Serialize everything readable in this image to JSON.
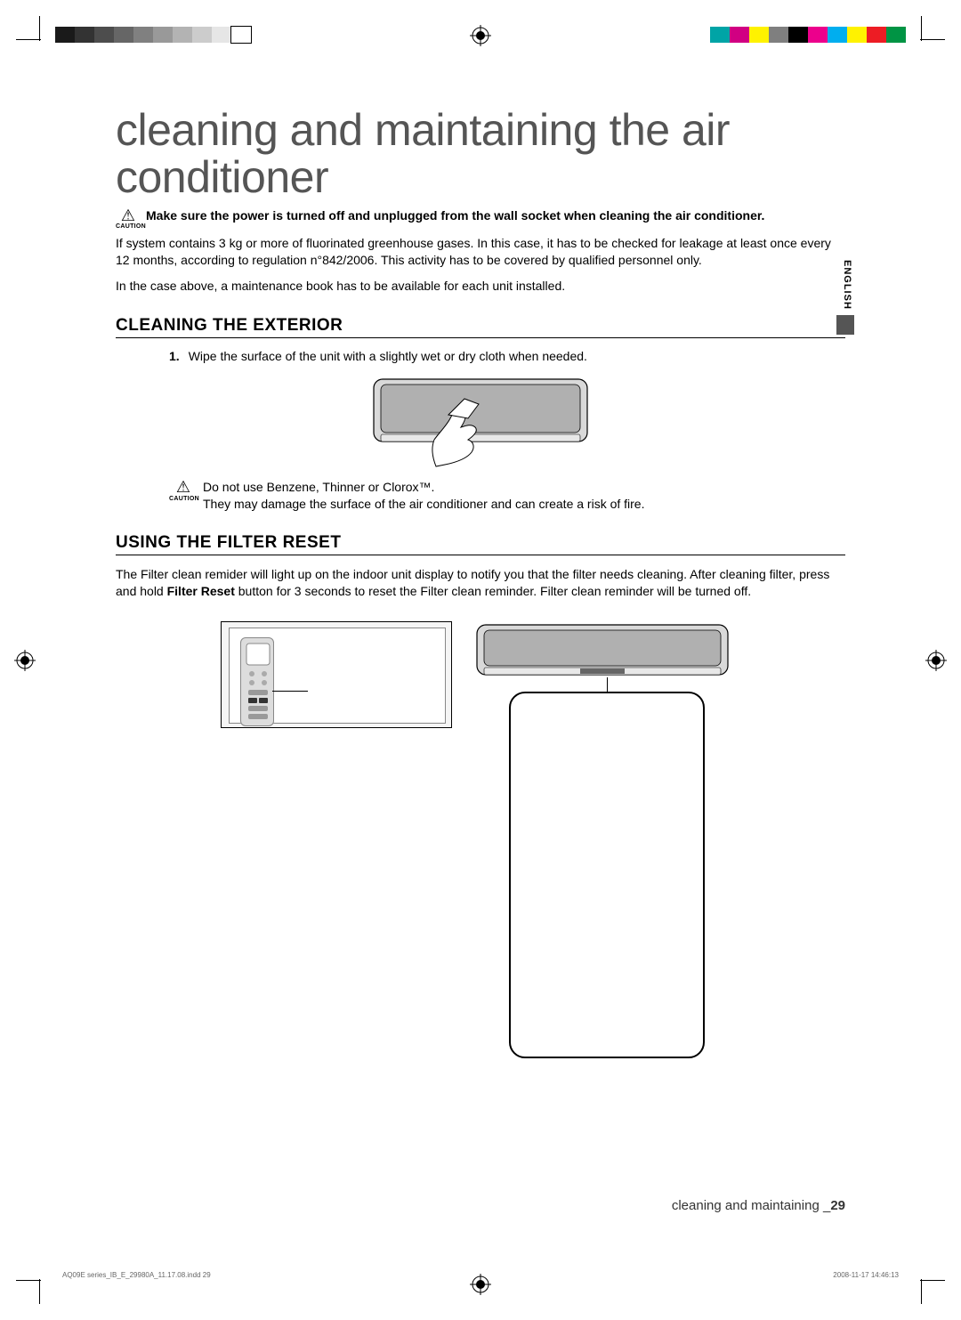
{
  "registration_bar_left": [
    "#1a1a1a",
    "#333333",
    "#4d4d4d",
    "#666666",
    "#808080",
    "#999999",
    "#b3b3b3",
    "#cccccc",
    "#e6e6e6",
    "#ffffff"
  ],
  "registration_bar_right": [
    "#00a4a6",
    "#d10082",
    "#fff200",
    "#7f7f7f",
    "#000000",
    "#ec008c",
    "#00aeef",
    "#fff200",
    "#ed1c24",
    "#009444"
  ],
  "main_title": "cleaning and maintaining the air conditioner",
  "caution_label": "CAUTION",
  "caution_main": "Make sure the power is turned off and unplugged from the wall socket when cleaning the air conditioner.",
  "intro_p1": "If  system contains 3 kg or more of fluorinated greenhouse gases. In this case, it has to be checked for leakage at least once every 12 months, according to regulation n°842/2006. This activity has to be covered by qualified personnel only.",
  "intro_p2": "In the case above, a maintenance book has to be available for each unit installed.",
  "section1_heading": "CLEANING THE EXTERIOR",
  "section1_step1_num": "1.",
  "section1_step1": "Wipe the surface of the unit with a slightly wet or dry cloth when needed.",
  "section1_caution_l1": "Do not use Benzene, Thinner or Clorox™.",
  "section1_caution_l2": "They may damage the surface of the air conditioner and can create a risk of fire.",
  "section2_heading": "USING THE FILTER RESET",
  "section2_p_pre": "The Filter clean remider will light up on the indoor unit display to notify you that the filter needs cleaning. After cleaning filter, press and hold ",
  "section2_p_bold": "Filter Reset",
  "section2_p_post": " button for 3 seconds to reset the Filter clean reminder. Filter clean reminder will be turned off.",
  "footer_label": "cleaning and maintaining _",
  "footer_page": "29",
  "lang_tab": "ENGLISH",
  "print_left": "AQ09E series_IB_E_29980A_11.17.08.indd   29",
  "print_right": "2008-11-17   14:46:13"
}
